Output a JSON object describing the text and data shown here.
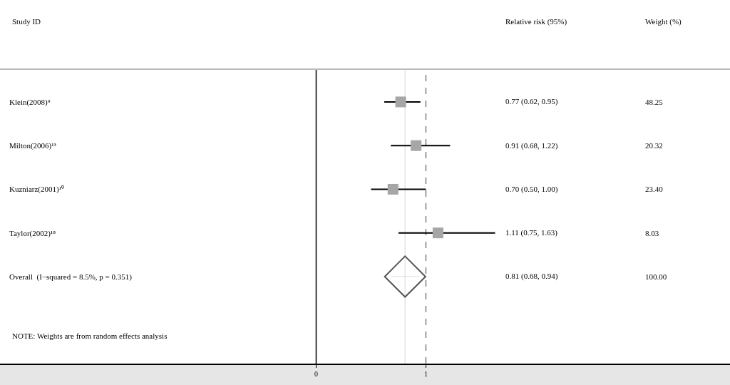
{
  "chart_data": {
    "type": "scatter",
    "orientation": "horizontal",
    "categories": [
      "Klein(2008)⁹",
      "Milton(2006)¹³",
      "Kuzniarz(2001)¹⁰",
      "Taylor(2002)¹⁸",
      "Overall  (I−squared = 8.5%, p = 0.351)"
    ],
    "series": [
      {
        "color": "#a6a6a6",
        "marker": "square",
        "values": [
          0.77,
          0.91,
          0.7,
          1.11,
          null
        ],
        "errors": [
          [
            0.62,
            0.95
          ],
          [
            0.68,
            1.22
          ],
          [
            0.5,
            1.0
          ],
          [
            0.75,
            1.63
          ],
          null
        ]
      },
      {
        "color": "#555555",
        "marker": "diamond",
        "values": [
          null,
          null,
          null,
          null,
          0.81
        ],
        "errors": [
          null,
          null,
          null,
          null,
          [
            0.68,
            0.94
          ]
        ]
      }
    ],
    "annotations": [
      "Study ID",
      "Relative risk (95%)",
      "Weight (%)",
      "0.77 (0.62, 0.95)",
      "0.91 (0.68, 1.22)",
      "0.70 (0.50, 1.00)",
      "1.11 (0.75, 1.63)",
      "0.81 (0.68, 0.94)",
      "48.25",
      "20.32",
      "23.40",
      "8.03",
      "100.00",
      "NOTE: Weights are from random effects analysis"
    ],
    "ref_lines": [
      {
        "axis": "x",
        "value": 0,
        "color": "#000000"
      },
      {
        "axis": "x",
        "value": 1,
        "line_style": "dashed",
        "color": "#555555"
      },
      {
        "axis": "x",
        "value": 0.81,
        "color": "#e6e6e6"
      }
    ],
    "xlim": [
      -2.88,
      3.77
    ],
    "xticks": [
      0,
      1
    ],
    "grid": false
  }
}
